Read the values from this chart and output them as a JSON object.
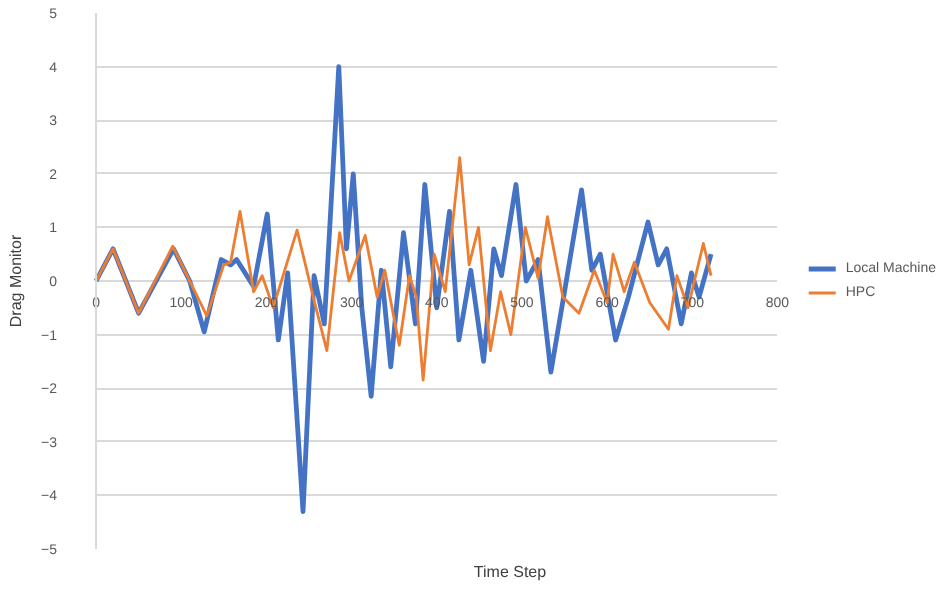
{
  "chart_data": {
    "type": "line",
    "xlabel": "Time Step",
    "ylabel": "Drag Monitor",
    "xlim": [
      0,
      800
    ],
    "xticks": [
      0,
      100,
      200,
      300,
      400,
      500,
      600,
      700,
      800
    ],
    "ylim": [
      -5,
      5
    ],
    "yticks": [
      -5,
      -4,
      -3,
      -2,
      -1,
      0,
      1,
      2,
      3,
      4,
      5
    ],
    "grid": "y",
    "legend": "right",
    "line_style": "solid",
    "series": [
      {
        "name": "Local Machine",
        "color": "#4472c4",
        "x": [
          0,
          20,
          50,
          91,
          110,
          127,
          147,
          158,
          165,
          185,
          201,
          214,
          225,
          243,
          256,
          268,
          285,
          294,
          302,
          312,
          323,
          335,
          346,
          361,
          375,
          386,
          400,
          415,
          426,
          440,
          455,
          467,
          476,
          493,
          505,
          519,
          534,
          550,
          570,
          582,
          592,
          610,
          625,
          648,
          660,
          670,
          687,
          699,
          708,
          722
        ],
        "values": [
          0,
          0.6,
          -0.6,
          0.6,
          0,
          -0.95,
          0.4,
          0.3,
          0.4,
          -0.1,
          1.25,
          -1.1,
          0.15,
          -4.3,
          0.1,
          -0.8,
          4.0,
          0.6,
          2.0,
          -0.5,
          -2.15,
          0.2,
          -1.6,
          0.9,
          -0.8,
          1.8,
          -0.5,
          1.3,
          -1.1,
          0.2,
          -1.5,
          0.6,
          0.1,
          1.8,
          0.0,
          0.4,
          -1.7,
          -0.2,
          1.7,
          0.2,
          0.5,
          -1.1,
          -0.3,
          1.1,
          0.3,
          0.6,
          -0.8,
          0.15,
          -0.3,
          0.5
        ]
      },
      {
        "name": "HPC",
        "color": "#ed7d31",
        "x": [
          0,
          20,
          50,
          90,
          130,
          150,
          158,
          169,
          185,
          195,
          208,
          236,
          255,
          271,
          286,
          297,
          316,
          330,
          339,
          356,
          368,
          376,
          384,
          397,
          410,
          427,
          438,
          449,
          463,
          475,
          487,
          504,
          519,
          530,
          548,
          567,
          585,
          600,
          607,
          620,
          632,
          650,
          672,
          682,
          695,
          713,
          722
        ],
        "values": [
          0,
          0.6,
          -0.6,
          0.65,
          -0.65,
          0.3,
          0.35,
          1.3,
          -0.2,
          0.1,
          -0.5,
          0.95,
          -0.3,
          -1.3,
          0.9,
          0,
          0.85,
          -0.3,
          0.2,
          -1.2,
          0.1,
          -0.3,
          -1.85,
          0.5,
          -0.2,
          2.3,
          0.3,
          1.0,
          -1.3,
          -0.2,
          -1.0,
          1.0,
          0.05,
          1.2,
          -0.3,
          -0.6,
          0.2,
          -0.4,
          0.5,
          -0.2,
          0.35,
          -0.4,
          -0.9,
          0.1,
          -0.5,
          0.7,
          0.1
        ]
      }
    ]
  }
}
